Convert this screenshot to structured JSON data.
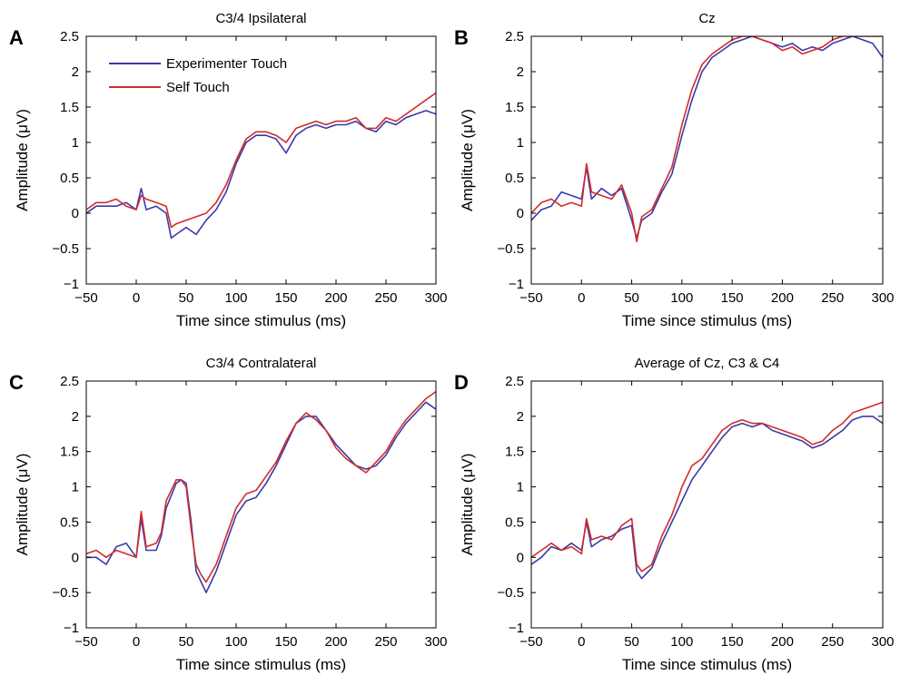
{
  "legend": {
    "entries": [
      {
        "label": "Experimenter Touch",
        "color": "#3a3aa8"
      },
      {
        "label": "Self Touch",
        "color": "#d42a2a"
      }
    ]
  },
  "colors": {
    "experimenter": "#3a3aa8",
    "self": "#d42a2a"
  },
  "chart_data": [
    {
      "type": "line",
      "panel": "A",
      "title": "C3/4 Ipsilateral",
      "xlabel": "Time since stimulus (ms)",
      "ylabel": "Amplitude (μV)",
      "xlim": [
        -50,
        300
      ],
      "ylim": [
        -1,
        2.5
      ],
      "xticks": [
        "−50",
        "0",
        "50",
        "100",
        "150",
        "200",
        "250",
        "300"
      ],
      "yticks": [
        "−1",
        "−0.5",
        "0",
        "0.5",
        "1",
        "1.5",
        "2",
        "2.5"
      ],
      "grid": false,
      "legend_position": "top-left",
      "x": [
        -50,
        -40,
        -30,
        -20,
        -10,
        0,
        5,
        10,
        20,
        30,
        35,
        40,
        50,
        60,
        70,
        80,
        90,
        100,
        110,
        120,
        130,
        140,
        150,
        160,
        170,
        180,
        190,
        200,
        210,
        220,
        230,
        240,
        250,
        260,
        270,
        280,
        290,
        300
      ],
      "series": [
        {
          "name": "Experimenter Touch",
          "values": [
            0.0,
            0.1,
            0.1,
            0.1,
            0.15,
            0.05,
            0.35,
            0.05,
            0.1,
            0.0,
            -0.35,
            -0.3,
            -0.2,
            -0.3,
            -0.1,
            0.05,
            0.3,
            0.7,
            1.0,
            1.1,
            1.1,
            1.05,
            0.85,
            1.1,
            1.2,
            1.25,
            1.2,
            1.25,
            1.25,
            1.3,
            1.2,
            1.15,
            1.3,
            1.25,
            1.35,
            1.4,
            1.45,
            1.4
          ]
        },
        {
          "name": "Self Touch",
          "values": [
            0.05,
            0.15,
            0.15,
            0.2,
            0.1,
            0.05,
            0.25,
            0.2,
            0.15,
            0.1,
            -0.2,
            -0.15,
            -0.1,
            -0.05,
            0.0,
            0.15,
            0.4,
            0.75,
            1.05,
            1.15,
            1.15,
            1.1,
            1.0,
            1.2,
            1.25,
            1.3,
            1.25,
            1.3,
            1.3,
            1.35,
            1.2,
            1.2,
            1.35,
            1.3,
            1.4,
            1.5,
            1.6,
            1.7
          ]
        }
      ]
    },
    {
      "type": "line",
      "panel": "B",
      "title": "Cz",
      "xlabel": "Time since stimulus (ms)",
      "ylabel": "Amplitude (μV)",
      "xlim": [
        -50,
        300
      ],
      "ylim": [
        -1,
        2.5
      ],
      "xticks": [
        "−50",
        "0",
        "50",
        "100",
        "150",
        "200",
        "250",
        "300"
      ],
      "yticks": [
        "−1",
        "−0.5",
        "0",
        "0.5",
        "1",
        "1.5",
        "2",
        "2.5"
      ],
      "grid": false,
      "x": [
        -50,
        -40,
        -30,
        -20,
        -10,
        0,
        5,
        10,
        20,
        30,
        40,
        50,
        55,
        60,
        70,
        80,
        90,
        100,
        110,
        120,
        130,
        140,
        150,
        160,
        170,
        180,
        190,
        200,
        210,
        220,
        230,
        240,
        250,
        260,
        270,
        280,
        290,
        300
      ],
      "series": [
        {
          "name": "Experimenter Touch",
          "values": [
            -0.1,
            0.05,
            0.1,
            0.3,
            0.25,
            0.2,
            0.65,
            0.2,
            0.35,
            0.25,
            0.35,
            -0.1,
            -0.35,
            -0.1,
            0.0,
            0.3,
            0.55,
            1.1,
            1.6,
            2.0,
            2.2,
            2.3,
            2.4,
            2.45,
            2.5,
            2.45,
            2.4,
            2.35,
            2.4,
            2.3,
            2.35,
            2.3,
            2.4,
            2.45,
            2.5,
            2.45,
            2.4,
            2.2
          ]
        },
        {
          "name": "Self Touch",
          "values": [
            0.0,
            0.15,
            0.2,
            0.1,
            0.15,
            0.1,
            0.7,
            0.3,
            0.25,
            0.2,
            0.4,
            0.0,
            -0.4,
            -0.05,
            0.05,
            0.35,
            0.65,
            1.25,
            1.75,
            2.1,
            2.25,
            2.35,
            2.45,
            2.5,
            2.5,
            2.45,
            2.4,
            2.3,
            2.35,
            2.25,
            2.3,
            2.35,
            2.45,
            2.5,
            2.5,
            2.5,
            2.5,
            2.5
          ]
        }
      ]
    },
    {
      "type": "line",
      "panel": "C",
      "title": "C3/4 Contralateral",
      "xlabel": "Time since stimulus (ms)",
      "ylabel": "Amplitude (μV)",
      "xlim": [
        -50,
        300
      ],
      "ylim": [
        -1,
        2.5
      ],
      "xticks": [
        "−50",
        "0",
        "50",
        "100",
        "150",
        "200",
        "250",
        "300"
      ],
      "yticks": [
        "−1",
        "−0.5",
        "0",
        "0.5",
        "1",
        "1.5",
        "2",
        "2.5"
      ],
      "grid": false,
      "x": [
        -50,
        -40,
        -30,
        -20,
        -10,
        0,
        5,
        10,
        20,
        25,
        30,
        40,
        45,
        50,
        55,
        60,
        65,
        70,
        80,
        90,
        100,
        110,
        120,
        130,
        140,
        150,
        160,
        170,
        180,
        190,
        200,
        210,
        220,
        230,
        240,
        250,
        260,
        270,
        280,
        290,
        300
      ],
      "series": [
        {
          "name": "Experimenter Touch",
          "values": [
            0.0,
            0.0,
            -0.1,
            0.15,
            0.2,
            0.0,
            0.55,
            0.1,
            0.1,
            0.3,
            0.7,
            1.05,
            1.1,
            1.05,
            0.5,
            -0.2,
            -0.35,
            -0.5,
            -0.2,
            0.2,
            0.6,
            0.8,
            0.85,
            1.05,
            1.3,
            1.6,
            1.9,
            2.0,
            2.0,
            1.8,
            1.6,
            1.45,
            1.3,
            1.25,
            1.3,
            1.45,
            1.7,
            1.9,
            2.05,
            2.2,
            2.1
          ]
        },
        {
          "name": "Self Touch",
          "values": [
            0.05,
            0.1,
            0.0,
            0.1,
            0.05,
            0.0,
            0.65,
            0.15,
            0.2,
            0.35,
            0.8,
            1.1,
            1.1,
            1.0,
            0.4,
            -0.1,
            -0.25,
            -0.35,
            -0.1,
            0.3,
            0.7,
            0.9,
            0.95,
            1.15,
            1.35,
            1.65,
            1.9,
            2.05,
            1.95,
            1.8,
            1.55,
            1.4,
            1.3,
            1.2,
            1.35,
            1.5,
            1.75,
            1.95,
            2.1,
            2.25,
            2.35
          ]
        }
      ]
    },
    {
      "type": "line",
      "panel": "D",
      "title": "Average of Cz, C3 & C4",
      "xlabel": "Time since stimulus (ms)",
      "ylabel": "Amplitude (μV)",
      "xlim": [
        -50,
        300
      ],
      "ylim": [
        -1,
        2.5
      ],
      "xticks": [
        "−50",
        "0",
        "50",
        "100",
        "150",
        "200",
        "250",
        "300"
      ],
      "yticks": [
        "−1",
        "−0.5",
        "0",
        "0.5",
        "1",
        "1.5",
        "2",
        "2.5"
      ],
      "grid": false,
      "x": [
        -50,
        -40,
        -30,
        -20,
        -10,
        0,
        5,
        10,
        20,
        30,
        40,
        50,
        55,
        60,
        70,
        80,
        90,
        100,
        110,
        120,
        130,
        140,
        150,
        160,
        170,
        180,
        190,
        200,
        210,
        220,
        230,
        240,
        250,
        260,
        270,
        280,
        290,
        300
      ],
      "series": [
        {
          "name": "Experimenter Touch",
          "values": [
            -0.1,
            0.0,
            0.15,
            0.1,
            0.2,
            0.1,
            0.5,
            0.15,
            0.25,
            0.3,
            0.4,
            0.45,
            -0.2,
            -0.3,
            -0.15,
            0.2,
            0.5,
            0.8,
            1.1,
            1.3,
            1.5,
            1.7,
            1.85,
            1.9,
            1.85,
            1.9,
            1.8,
            1.75,
            1.7,
            1.65,
            1.55,
            1.6,
            1.7,
            1.8,
            1.95,
            2.0,
            2.0,
            1.9
          ]
        },
        {
          "name": "Self Touch",
          "values": [
            0.0,
            0.1,
            0.2,
            0.1,
            0.15,
            0.05,
            0.55,
            0.25,
            0.3,
            0.25,
            0.45,
            0.55,
            -0.1,
            -0.2,
            -0.1,
            0.3,
            0.6,
            1.0,
            1.3,
            1.4,
            1.6,
            1.8,
            1.9,
            1.95,
            1.9,
            1.9,
            1.85,
            1.8,
            1.75,
            1.7,
            1.6,
            1.65,
            1.8,
            1.9,
            2.05,
            2.1,
            2.15,
            2.2
          ]
        }
      ]
    }
  ]
}
